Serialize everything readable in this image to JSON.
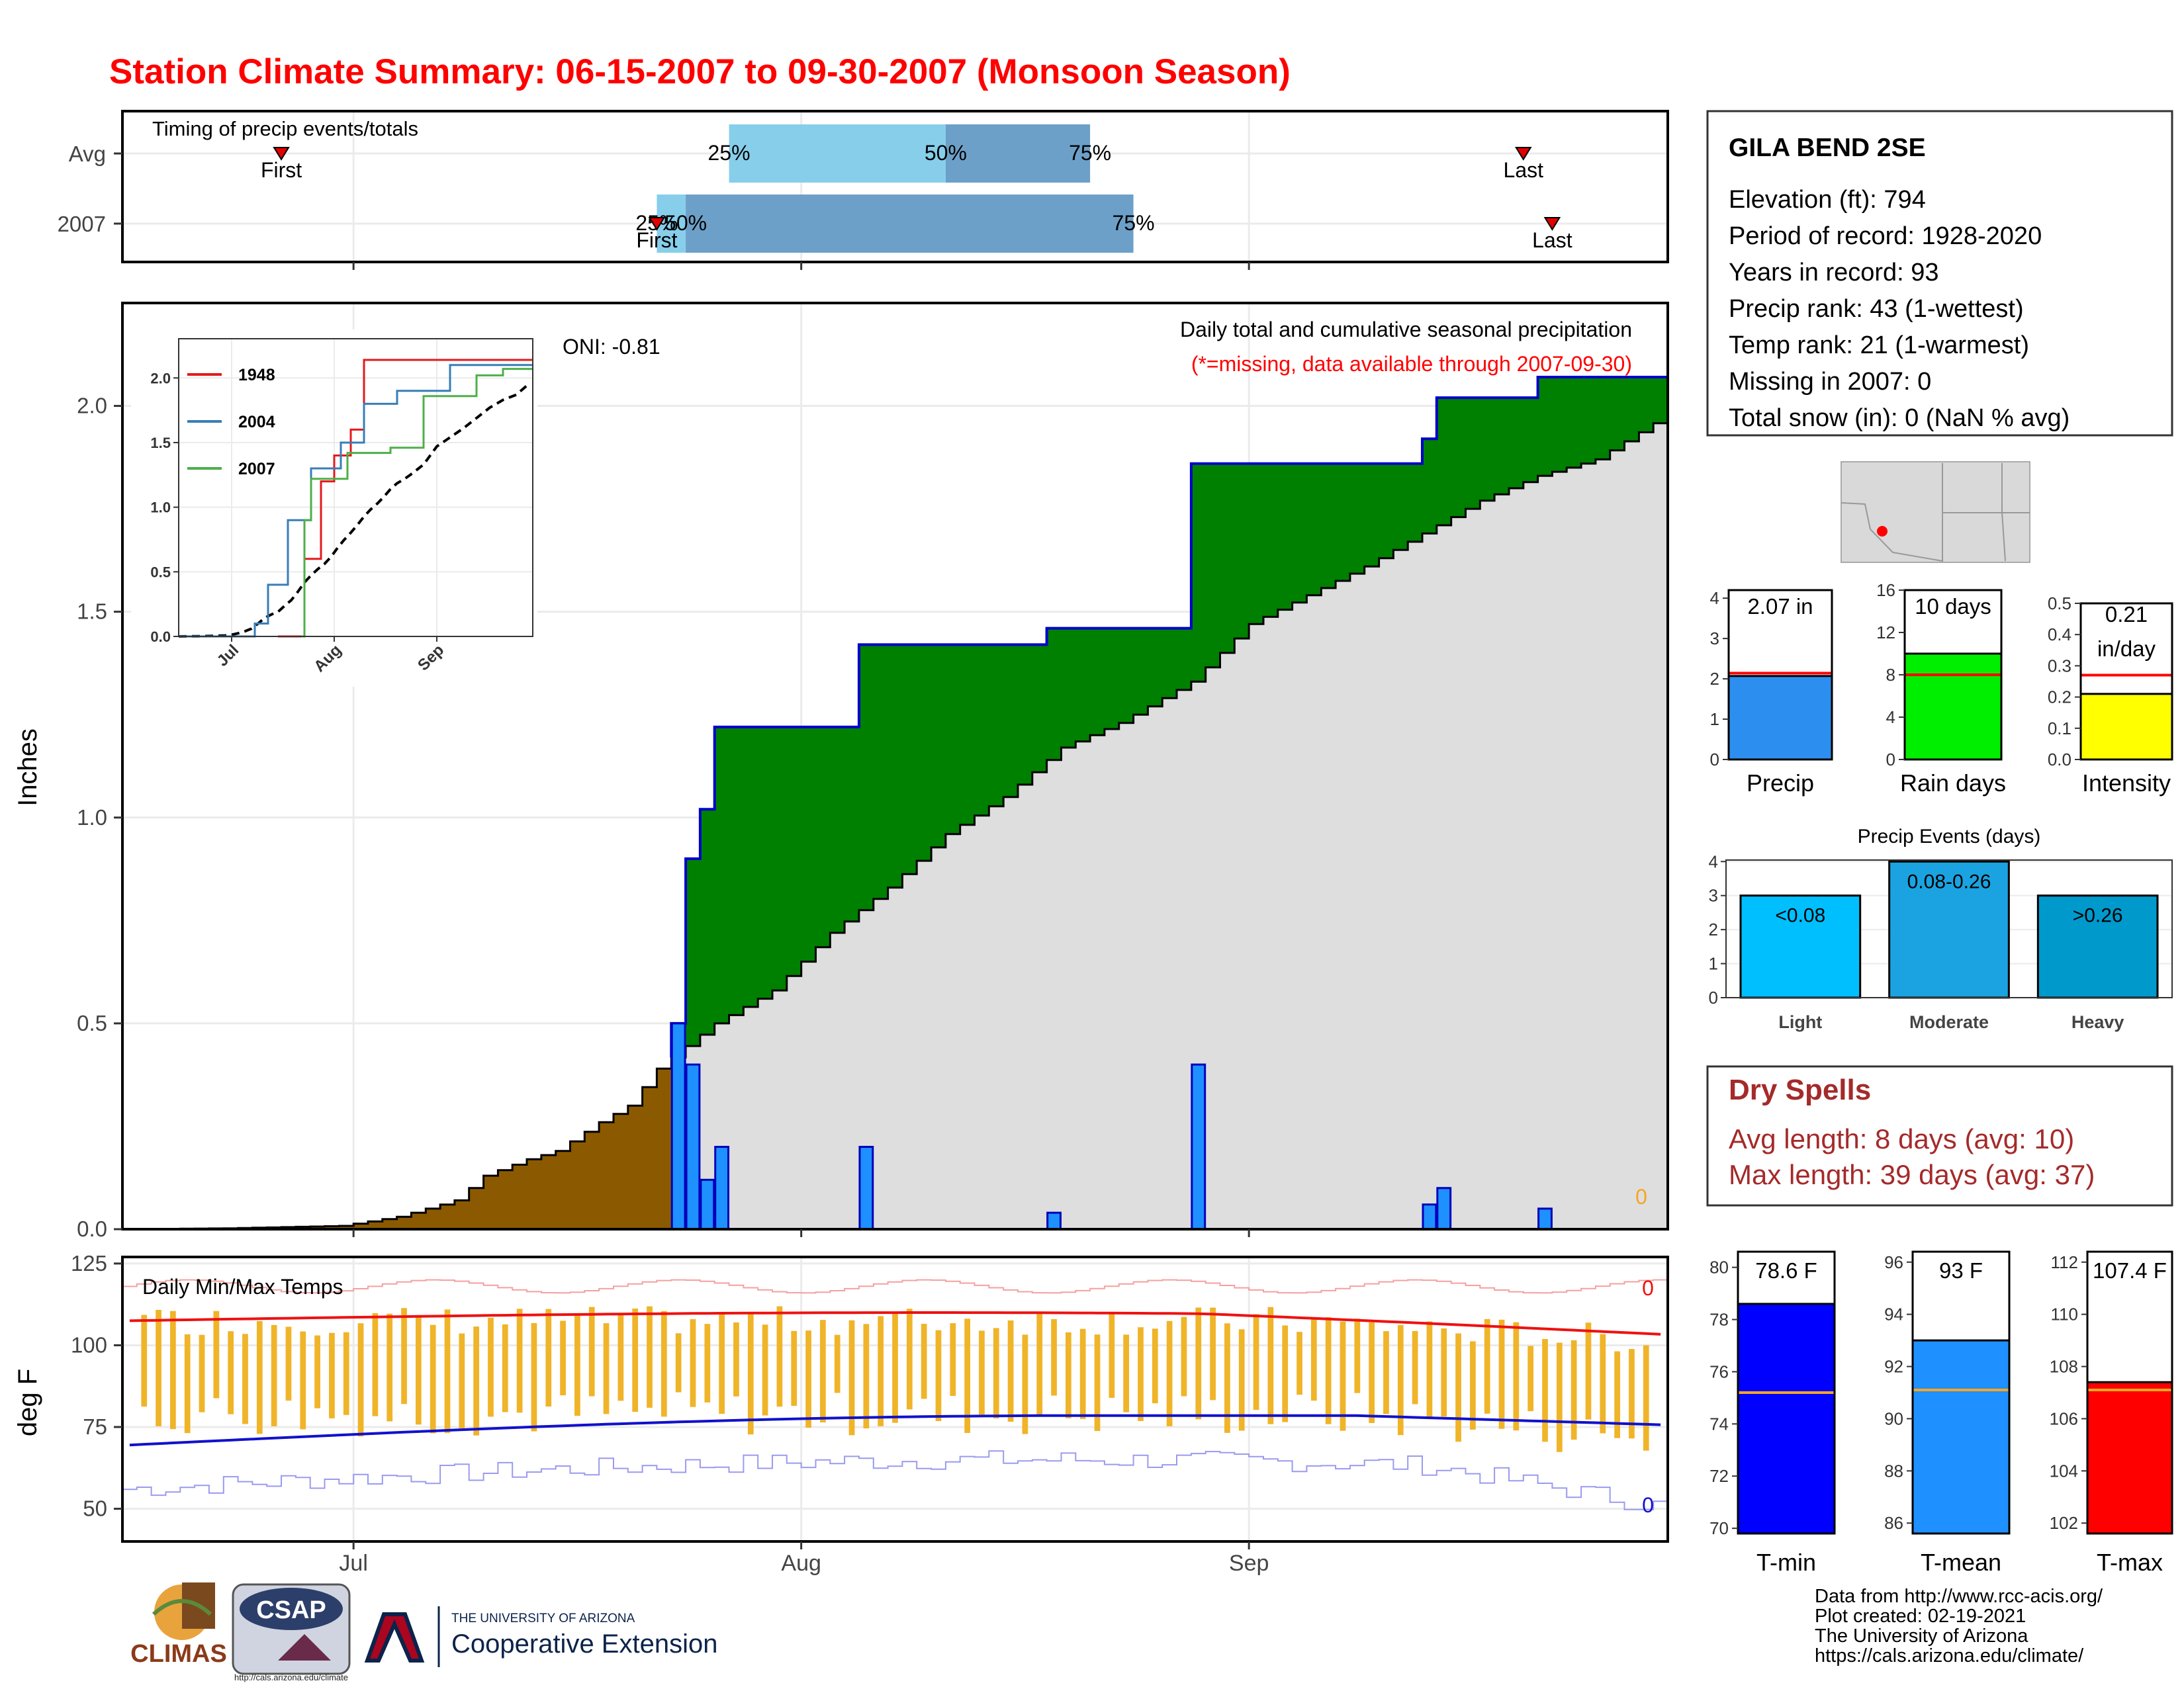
{
  "title": "Station Climate Summary: 06-15-2007 to 09-30-2007 (Monsoon Season)",
  "timing": {
    "label": "Timing of precip events/totals",
    "rows": [
      "Avg",
      "2007"
    ],
    "avg": {
      "first": "2007-06-26",
      "q25": "2007-07-27",
      "q50": "2007-08-11",
      "q75": "2007-08-21",
      "last": "2007-09-20"
    },
    "y2007": {
      "first": "2007-07-22",
      "q25": "2007-07-22",
      "q50": "2007-07-24",
      "q75": "2007-08-24",
      "last": "2007-09-22"
    },
    "first_label": "First",
    "last_label": "Last",
    "q25_label": "25%",
    "q50_label": "50%",
    "q75_label": "75%",
    "colors": {
      "light": "#87ceeb",
      "dark": "#6ca0c8",
      "marker": "#e00000"
    }
  },
  "main": {
    "ylabel": "Inches",
    "annotation_title": "Daily total and cumulative seasonal precipitation",
    "annotation_missing": "(*=missing, data available through 2007-09-30)",
    "oni": "ONI: -0.81",
    "missing_count": "0",
    "xlabels": [
      "Jul",
      "Aug",
      "Sep"
    ]
  },
  "chart_data": [
    {
      "type": "area",
      "name": "cumulative_precip",
      "start_date": "2007-06-15",
      "end_date": "2007-09-30",
      "yticks": [
        0.0,
        0.5,
        1.0,
        1.5,
        2.0
      ],
      "ylim": [
        0,
        2.25
      ],
      "daily_precip": [
        {
          "date": "2007-07-23",
          "value": 0.5
        },
        {
          "date": "2007-07-24",
          "value": 0.4
        },
        {
          "date": "2007-07-25",
          "value": 0.12
        },
        {
          "date": "2007-07-26",
          "value": 0.2
        },
        {
          "date": "2007-08-05",
          "value": 0.2
        },
        {
          "date": "2007-08-18",
          "value": 0.04
        },
        {
          "date": "2007-08-28",
          "value": 0.4
        },
        {
          "date": "2007-09-13",
          "value": 0.06
        },
        {
          "date": "2007-09-14",
          "value": 0.1
        },
        {
          "date": "2007-09-21",
          "value": 0.05
        }
      ],
      "avg_cumulative": [
        {
          "date": "2007-06-15",
          "value": 0.0
        },
        {
          "date": "2007-06-22",
          "value": 0.002
        },
        {
          "date": "2007-06-30",
          "value": 0.008
        },
        {
          "date": "2007-07-04",
          "value": 0.03
        },
        {
          "date": "2007-07-08",
          "value": 0.07
        },
        {
          "date": "2007-07-10",
          "value": 0.13
        },
        {
          "date": "2007-07-13",
          "value": 0.17
        },
        {
          "date": "2007-07-15",
          "value": 0.19
        },
        {
          "date": "2007-07-18",
          "value": 0.26
        },
        {
          "date": "2007-07-20",
          "value": 0.3
        },
        {
          "date": "2007-07-22",
          "value": 0.39
        },
        {
          "date": "2007-07-26",
          "value": 0.5
        },
        {
          "date": "2007-07-30",
          "value": 0.58
        },
        {
          "date": "2007-08-03",
          "value": 0.72
        },
        {
          "date": "2007-08-07",
          "value": 0.83
        },
        {
          "date": "2007-08-11",
          "value": 0.96
        },
        {
          "date": "2007-08-15",
          "value": 1.05
        },
        {
          "date": "2007-08-19",
          "value": 1.17
        },
        {
          "date": "2007-08-23",
          "value": 1.23
        },
        {
          "date": "2007-08-28",
          "value": 1.33
        },
        {
          "date": "2007-09-01",
          "value": 1.47
        },
        {
          "date": "2007-09-05",
          "value": 1.54
        },
        {
          "date": "2007-09-09",
          "value": 1.61
        },
        {
          "date": "2007-09-13",
          "value": 1.69
        },
        {
          "date": "2007-09-17",
          "value": 1.77
        },
        {
          "date": "2007-09-21",
          "value": 1.83
        },
        {
          "date": "2007-09-25",
          "value": 1.87
        },
        {
          "date": "2007-09-30",
          "value": 1.98
        }
      ],
      "colors": {
        "bar": "#1e90ff",
        "above": "#008000",
        "below": "#8b5a00",
        "avg_fill": "#dedede",
        "obs_line": "#0000cc"
      }
    },
    {
      "type": "line",
      "name": "inset_cumulative",
      "series": [
        {
          "name": "1948",
          "color": "#e41a1c",
          "x": [
            "07-15",
            "07-22",
            "07-23",
            "07-28",
            "08-01",
            "08-06",
            "08-10",
            "09-30"
          ],
          "values": [
            0,
            0,
            0.6,
            1.2,
            1.4,
            1.6,
            2.14,
            2.14
          ]
        },
        {
          "name": "2004",
          "color": "#377eb8",
          "x": [
            "06-15",
            "07-08",
            "07-12",
            "07-18",
            "07-25",
            "08-03",
            "08-10",
            "08-20",
            "09-05",
            "09-30"
          ],
          "values": [
            0,
            0.1,
            0.4,
            0.9,
            1.3,
            1.5,
            1.8,
            1.9,
            2.1,
            2.1
          ]
        },
        {
          "name": "2007",
          "color": "#4daf4a",
          "x": [
            "07-22",
            "07-23",
            "07-25",
            "08-05",
            "08-18",
            "08-28",
            "09-13",
            "09-21",
            "09-30"
          ],
          "values": [
            0,
            0.9,
            1.22,
            1.42,
            1.46,
            1.86,
            2.02,
            2.07,
            2.07
          ]
        }
      ],
      "yticks": [
        "0.0",
        "0.5",
        "1.0",
        "1.5",
        "2.0"
      ],
      "xlabels": [
        "Jul",
        "Aug",
        "Sep"
      ]
    },
    {
      "type": "bar",
      "name": "temperature",
      "title": "Daily Min/Max Temps",
      "ylabel": "deg F",
      "yticks": [
        50,
        75,
        100,
        125
      ],
      "ylim": [
        40,
        127
      ],
      "max_missing": "0",
      "min_missing": "0",
      "colors": {
        "bar": "#f0b429",
        "avg_max": "#ee1111",
        "avg_min": "#1111cc",
        "rec_max": "#f5a0a0",
        "rec_min": "#9a9af0"
      }
    },
    {
      "type": "bar",
      "name": "precip_gauge",
      "categories": [
        "Precip"
      ],
      "values": [
        2.07
      ],
      "avg": 2.14,
      "label": "2.07 in",
      "yticks": [
        0,
        1,
        2,
        3,
        4
      ],
      "ylim": [
        0,
        4.2
      ],
      "color": "#2c8ff0"
    },
    {
      "type": "bar",
      "name": "raindays_gauge",
      "categories": [
        "Rain days"
      ],
      "values": [
        10
      ],
      "avg": 8,
      "label": "10 days",
      "yticks": [
        0,
        4,
        8,
        12,
        16
      ],
      "ylim": [
        0,
        16
      ],
      "color": "#00ee00"
    },
    {
      "type": "bar",
      "name": "intensity_gauge",
      "categories": [
        "Intensity"
      ],
      "values": [
        0.21
      ],
      "avg": 0.27,
      "label": "0.21",
      "label2": "in/day",
      "yticks": [
        "0.0",
        "0.1",
        "0.2",
        "0.3",
        "0.4",
        "0.5"
      ],
      "ylim": [
        0,
        0.5
      ],
      "color": "#ffff00"
    },
    {
      "type": "bar",
      "name": "precip_events",
      "title": "Precip Events (days)",
      "categories": [
        "Light",
        "Moderate",
        "Heavy"
      ],
      "values": [
        3,
        4,
        3
      ],
      "labels": [
        "<0.08",
        "0.08-0.26",
        ">0.26"
      ],
      "yticks": [
        0,
        1,
        2,
        3,
        4
      ],
      "ylim": [
        0,
        4.2
      ],
      "colors": [
        "#00bfff",
        "#1aa3e0",
        "#0099cc"
      ]
    },
    {
      "type": "bar",
      "name": "tmin_gauge",
      "categories": [
        "T-min"
      ],
      "values": [
        78.6
      ],
      "avg": 75.2,
      "label": "78.6 F",
      "yticks": [
        70,
        72,
        74,
        76,
        78,
        80
      ],
      "ylim": [
        69.8,
        80.6
      ],
      "color": "#0000ff"
    },
    {
      "type": "bar",
      "name": "tmean_gauge",
      "categories": [
        "T-mean"
      ],
      "values": [
        93
      ],
      "avg": 91.1,
      "label": "93 F",
      "yticks": [
        86,
        88,
        90,
        92,
        94,
        96
      ],
      "ylim": [
        85.6,
        96.4
      ],
      "color": "#1e90ff"
    },
    {
      "type": "bar",
      "name": "tmax_gauge",
      "categories": [
        "T-max"
      ],
      "values": [
        107.4
      ],
      "avg": 107.1,
      "label": "107.4 F",
      "yticks": [
        102,
        104,
        106,
        108,
        110,
        112
      ],
      "ylim": [
        101.6,
        112.4
      ],
      "color": "#ff0000"
    }
  ],
  "station": {
    "name": "GILA BEND 2SE",
    "lines": [
      "Elevation (ft): 794",
      "Period of record: 1928-2020",
      "Years in record: 93",
      "Precip rank: 43 (1-wettest)",
      "Temp rank: 21 (1-warmest)",
      "Missing in 2007: 0",
      "Total snow (in): 0 (NaN % avg)"
    ]
  },
  "dry_spells": {
    "title": "Dry Spells",
    "avg": "Avg length: 8 days (avg: 10)",
    "max": "Max length: 39 days (avg: 37)"
  },
  "footer": {
    "lines": [
      "Data from http://www.rcc-acis.org/",
      "Plot created: 02-19-2021",
      "The University of Arizona",
      "https://cals.arizona.edu/climate/"
    ],
    "climas": "CLIMAS",
    "csap": "CSAP",
    "csap_url": "http://cals.arizona.edu/climate",
    "ua_small": "THE UNIVERSITY OF ARIZONA",
    "ua_big": "Cooperative Extension"
  }
}
